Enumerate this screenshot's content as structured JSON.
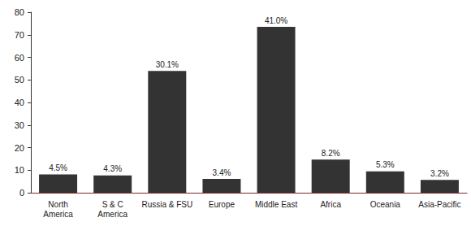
{
  "chart_data": {
    "type": "bar",
    "categories": [
      "North\nAmerica",
      "S & C\nAmerica",
      "Russia & FSU",
      "Europe",
      "Middle East",
      "Africa",
      "Oceania",
      "Asia-Pacific"
    ],
    "values": [
      8.1,
      7.7,
      54.0,
      6.1,
      73.5,
      14.7,
      9.5,
      5.7
    ],
    "annotations": [
      "4.5%",
      "4.3%",
      "30.1%",
      "3.4%",
      "41.0%",
      "8.2%",
      "5.3%",
      "3.2%"
    ],
    "color": "#333333",
    "ylim": [
      0,
      80
    ],
    "yticks": [
      0,
      10,
      20,
      30,
      40,
      50,
      60,
      70,
      80
    ],
    "grid": false,
    "data_labels": false
  }
}
